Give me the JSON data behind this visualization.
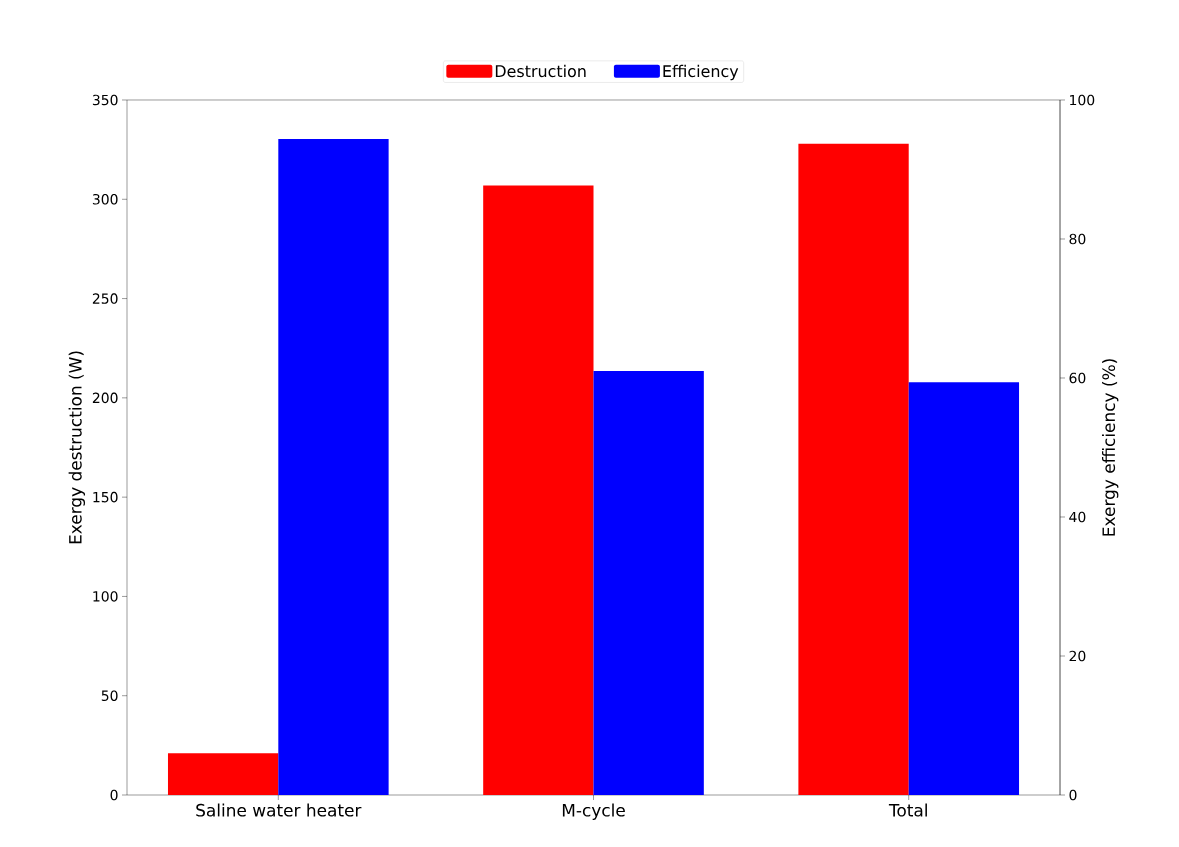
{
  "chart_data": {
    "type": "bar",
    "categories": [
      "Saline water heater",
      "M-cycle",
      "Total"
    ],
    "ylabel": "Exergy destruction (W)",
    "y2label": "Exergy efficiency (%)",
    "series": [
      {
        "name": "Destruction",
        "color": "#ff0000",
        "values": [
          21,
          307,
          328
        ]
      },
      {
        "name": "Efficiency",
        "color": "#0000ff",
        "values": [
          94.4,
          61.0,
          59.4
        ],
        "axis": "y2"
      }
    ],
    "ylim": [
      0,
      350
    ],
    "yticks": [
      0,
      50,
      100,
      150,
      200,
      250,
      300,
      350
    ],
    "y2lim": [
      0,
      100
    ],
    "y2ticks": [
      0,
      20,
      40,
      60,
      80,
      100
    ],
    "legend": "top"
  }
}
